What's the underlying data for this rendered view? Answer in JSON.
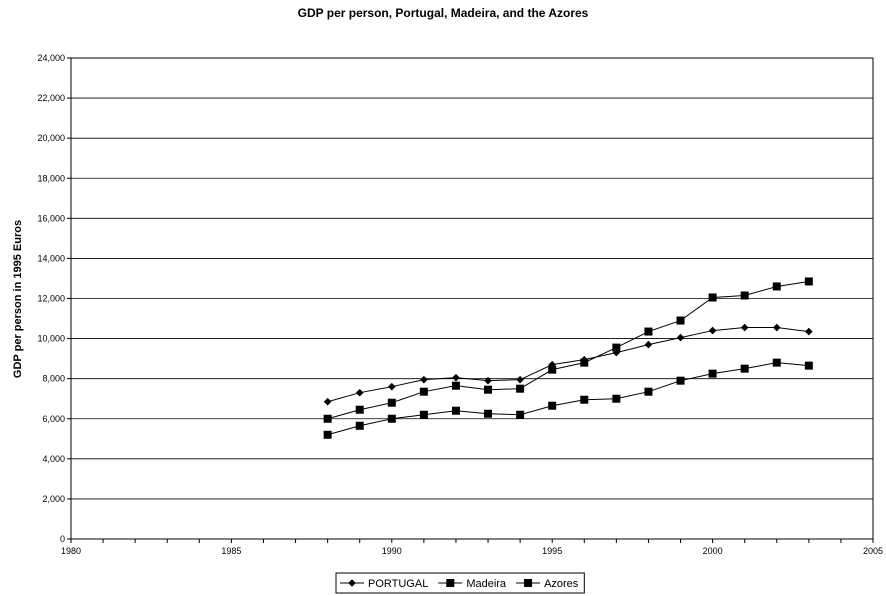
{
  "chart_data": {
    "type": "line",
    "title": "GDP per person, Portugal, Madeira, and the Azores",
    "xlabel": "",
    "ylabel": "GDP per person in 1995 Euros",
    "xlim": [
      1980,
      2005
    ],
    "ylim": [
      0,
      24000
    ],
    "x_ticks": [
      "1980",
      "1985",
      "1990",
      "1995",
      "2000",
      "2005"
    ],
    "y_ticks": [
      "0",
      "2,000",
      "4,000",
      "6,000",
      "8,000",
      "10,000",
      "12,000",
      "14,000",
      "16,000",
      "18,000",
      "20,000",
      "22,000",
      "24,000"
    ],
    "grid": "horizontal",
    "legend_position": "bottom",
    "series": [
      {
        "name": "PORTUGAL",
        "marker": "diamond",
        "color": "#000000",
        "x": [
          1988,
          1989,
          1990,
          1991,
          1992,
          1993,
          1994,
          1995,
          1996,
          1997,
          1998,
          1999,
          2000,
          2001,
          2002,
          2003
        ],
        "values": [
          6850,
          7300,
          7600,
          7950,
          8050,
          7900,
          7950,
          8700,
          8950,
          9300,
          9700,
          10050,
          10400,
          10550,
          10550,
          10350
        ]
      },
      {
        "name": "Madeira",
        "marker": "square",
        "color": "#000000",
        "x": [
          1988,
          1989,
          1990,
          1991,
          1992,
          1993,
          1994,
          1995,
          1996,
          1997,
          1998,
          1999,
          2000,
          2001,
          2002,
          2003
        ],
        "values": [
          6000,
          6450,
          6800,
          7350,
          7650,
          7450,
          7500,
          8450,
          8800,
          9550,
          10350,
          10900,
          12050,
          12150,
          12600,
          12850
        ]
      },
      {
        "name": "Azores",
        "marker": "square",
        "color": "#000000",
        "x": [
          1988,
          1989,
          1990,
          1991,
          1992,
          1993,
          1994,
          1995,
          1996,
          1997,
          1998,
          1999,
          2000,
          2001,
          2002,
          2003
        ],
        "values": [
          5200,
          5650,
          6000,
          6200,
          6400,
          6250,
          6200,
          6650,
          6950,
          7000,
          7350,
          7900,
          8250,
          8500,
          8800,
          8650
        ]
      }
    ]
  }
}
